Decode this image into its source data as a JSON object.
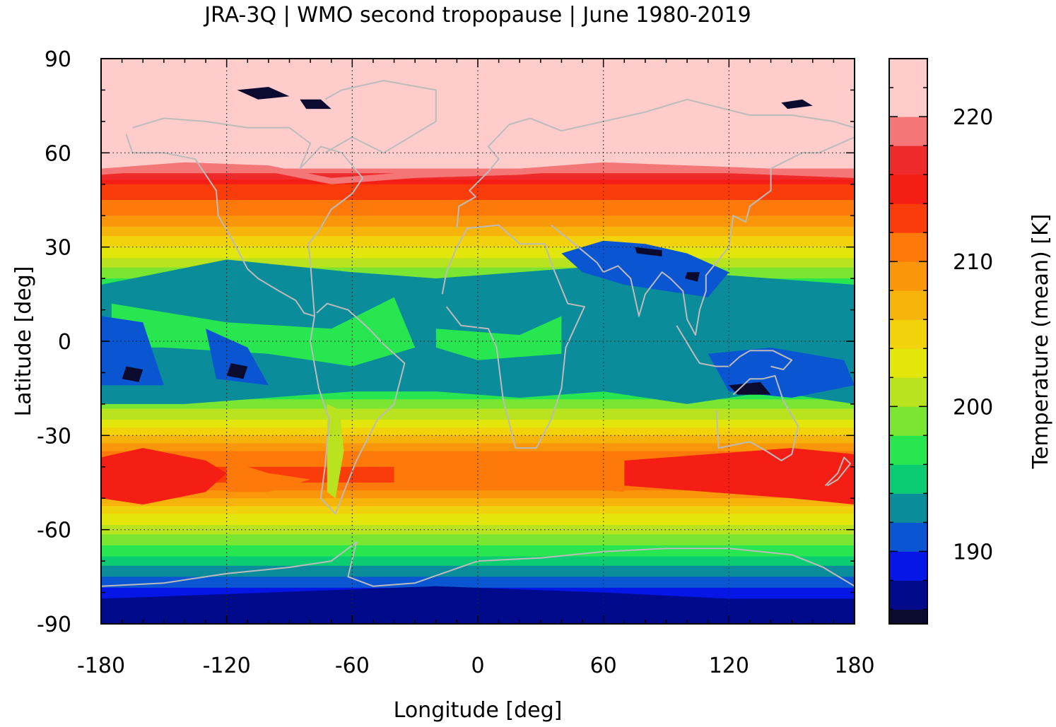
{
  "chart_data": {
    "type": "heatmap",
    "title": "JRA-3Q | WMO second tropopause | June 1980-2019",
    "xlabel": "Longitude [deg]",
    "ylabel": "Latitude [deg]",
    "xlim": [
      -180,
      180
    ],
    "ylim": [
      -90,
      90
    ],
    "x_ticks": [
      -180,
      -120,
      -60,
      0,
      60,
      120,
      180
    ],
    "y_ticks": [
      90,
      60,
      30,
      0,
      -30,
      -60,
      -90
    ],
    "x_tick_labels": [
      "-180",
      "-120",
      "-60",
      "0",
      "60",
      "120",
      "180"
    ],
    "y_tick_labels": [
      "90",
      "60",
      "30",
      "0",
      "-30",
      "-60",
      "-90"
    ],
    "grid": true,
    "colorbar": {
      "label": "Temperature (mean) [K]",
      "range": [
        185,
        224
      ],
      "ticks": [
        190,
        200,
        210,
        220
      ],
      "tick_labels": [
        "190",
        "200",
        "210",
        "220"
      ],
      "levels": [
        {
          "from": 185,
          "to": 186,
          "color": "#0b0b30"
        },
        {
          "from": 186,
          "to": 188,
          "color": "#020a8c"
        },
        {
          "from": 188,
          "to": 190,
          "color": "#0516e6"
        },
        {
          "from": 190,
          "to": 192,
          "color": "#0a55d2"
        },
        {
          "from": 192,
          "to": 194,
          "color": "#0a8c9a"
        },
        {
          "from": 194,
          "to": 196,
          "color": "#0ccc73"
        },
        {
          "from": 196,
          "to": 198,
          "color": "#28e650"
        },
        {
          "from": 198,
          "to": 200,
          "color": "#7ae632"
        },
        {
          "from": 200,
          "to": 202,
          "color": "#b9e31e"
        },
        {
          "from": 202,
          "to": 204,
          "color": "#e3e60a"
        },
        {
          "from": 204,
          "to": 206,
          "color": "#f2d20a"
        },
        {
          "from": 206,
          "to": 208,
          "color": "#f6b40a"
        },
        {
          "from": 208,
          "to": 210,
          "color": "#fa960a"
        },
        {
          "from": 210,
          "to": 212,
          "color": "#fd7a0a"
        },
        {
          "from": 212,
          "to": 214,
          "color": "#fa3c0a"
        },
        {
          "from": 214,
          "to": 216,
          "color": "#f51e14"
        },
        {
          "from": 216,
          "to": 218,
          "color": "#ee2a2a"
        },
        {
          "from": 218,
          "to": 220,
          "color": "#f57676"
        },
        {
          "from": 220,
          "to": 224,
          "color": "#ffcccc"
        }
      ]
    },
    "zonal_mean_profile": {
      "lat": [
        90,
        80,
        70,
        60,
        55,
        50,
        45,
        40,
        35,
        30,
        25,
        20,
        15,
        10,
        5,
        0,
        -5,
        -10,
        -15,
        -20,
        -25,
        -30,
        -35,
        -40,
        -45,
        -50,
        -55,
        -60,
        -65,
        -70,
        -75,
        -80,
        -85,
        -90
      ],
      "temperature_K": [
        221,
        221,
        221,
        221,
        220,
        214,
        212,
        210,
        207,
        204,
        201,
        198,
        195,
        194,
        194,
        196,
        193,
        193,
        196,
        199,
        202,
        206,
        210,
        212,
        212,
        208,
        204,
        201,
        198,
        195,
        192,
        189,
        188,
        187
      ]
    },
    "background_color": "#f0d80a",
    "coastline_color": "#bbbbbb"
  }
}
